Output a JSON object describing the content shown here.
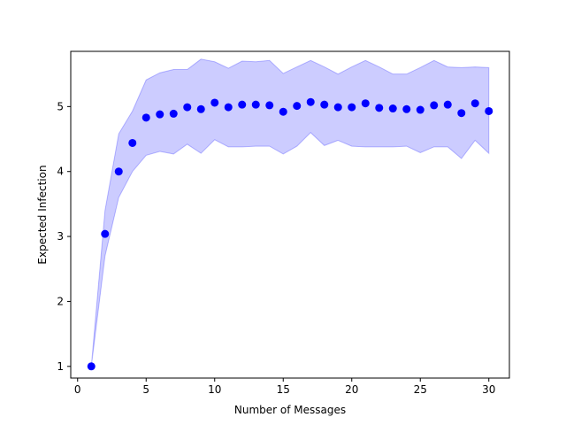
{
  "chart_data": {
    "type": "scatter",
    "title": "",
    "xlabel": "Number of Messages",
    "ylabel": "Expected Infection",
    "xlim": [
      -0.5,
      31.5
    ],
    "ylim": [
      0.82,
      5.85
    ],
    "xticks": [
      0,
      5,
      10,
      15,
      20,
      25,
      30
    ],
    "yticks": [
      1,
      2,
      3,
      4,
      5
    ],
    "grid": false,
    "legend": "none",
    "series": [
      {
        "marker_color": "#0000ff",
        "band_color": "#0000ff",
        "x": [
          1,
          2,
          3,
          4,
          5,
          6,
          7,
          8,
          9,
          10,
          11,
          12,
          13,
          14,
          15,
          16,
          17,
          18,
          19,
          20,
          21,
          22,
          23,
          24,
          25,
          26,
          27,
          28,
          29,
          30
        ],
        "mean": [
          1.0,
          3.04,
          4.0,
          4.44,
          4.83,
          4.88,
          4.89,
          4.99,
          4.96,
          5.06,
          4.99,
          5.03,
          5.03,
          5.02,
          4.92,
          5.01,
          5.07,
          5.03,
          4.99,
          4.99,
          5.05,
          4.98,
          4.97,
          4.96,
          4.95,
          5.02,
          5.03,
          4.9,
          5.05,
          4.93
        ],
        "lower": [
          1.0,
          2.7,
          3.6,
          4.0,
          4.25,
          4.31,
          4.27,
          4.42,
          4.28,
          4.49,
          4.38,
          4.38,
          4.39,
          4.39,
          4.27,
          4.39,
          4.6,
          4.4,
          4.48,
          4.39,
          4.38,
          4.38,
          4.38,
          4.39,
          4.29,
          4.38,
          4.38,
          4.2,
          4.48,
          4.28
        ],
        "upper": [
          1.0,
          3.4,
          4.58,
          4.93,
          5.41,
          5.52,
          5.57,
          5.57,
          5.73,
          5.69,
          5.59,
          5.7,
          5.69,
          5.71,
          5.51,
          5.61,
          5.71,
          5.61,
          5.5,
          5.61,
          5.71,
          5.61,
          5.5,
          5.5,
          5.6,
          5.71,
          5.61,
          5.6,
          5.61,
          5.6
        ]
      }
    ]
  }
}
